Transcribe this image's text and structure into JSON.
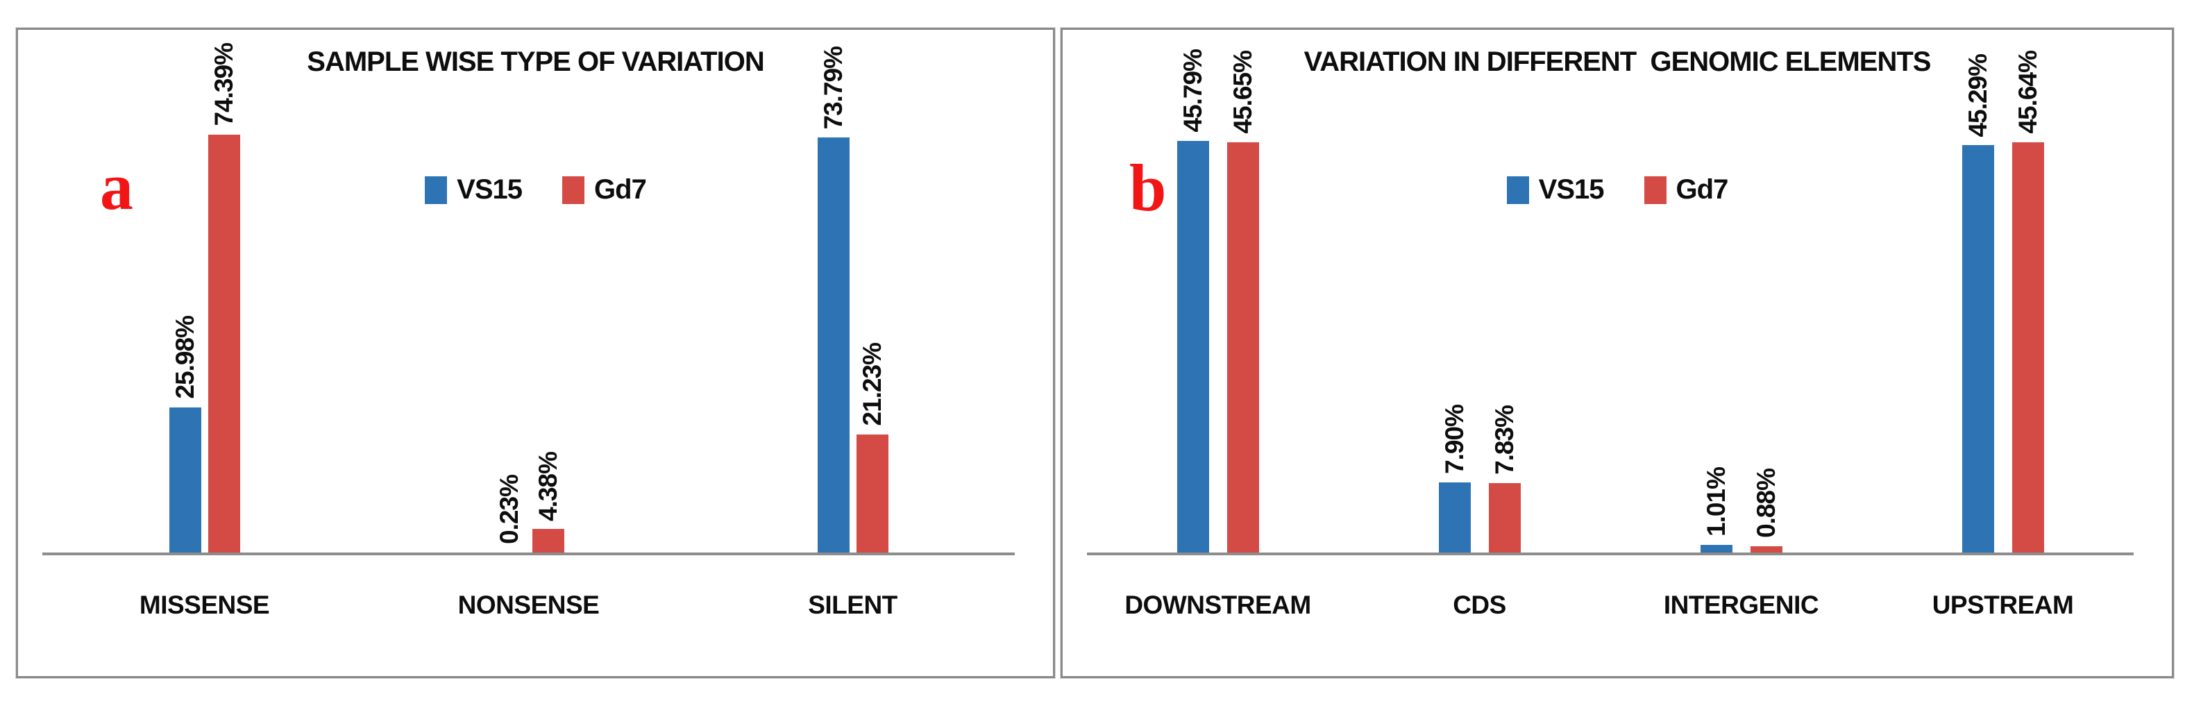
{
  "styles": {
    "bar_blue": "#2e74b5",
    "bar_red": "#d44a44",
    "panel_letter_color": "#f21515",
    "axis_line_color": "#8c8c8c",
    "panel_border_color": "#8a8a8a",
    "text_color": "#0d0d0d"
  },
  "chart_data": [
    {
      "type": "bar",
      "panel_letter": "a",
      "title": "SAMPLE WISE TYPE OF VARIATION",
      "categories": [
        "MISSENSE",
        "NONSENSE",
        "SILENT"
      ],
      "series": [
        {
          "name": "VS15",
          "color": "#2e74b5",
          "values": [
            25.98,
            0.23,
            73.79
          ],
          "value_labels": [
            "25.98%",
            "0.23%",
            "73.79%"
          ]
        },
        {
          "name": "Gd7",
          "color": "#d44a44",
          "values": [
            74.39,
            4.38,
            21.23
          ],
          "value_labels": [
            "74.39%",
            "4.38%",
            "21.23%"
          ]
        }
      ],
      "xlabel": "",
      "ylabel": "",
      "ylim": [
        0,
        80
      ],
      "grid": false,
      "y_axis_visible": false,
      "value_labels_rotated_90_deg": true,
      "legend_position": "top-center"
    },
    {
      "type": "bar",
      "panel_letter": "b",
      "title": "VARIATION IN DIFFERENT  GENOMIC ELEMENTS",
      "categories": [
        "DOWNSTREAM",
        "CDS",
        "INTERGENIC",
        "UPSTREAM"
      ],
      "series": [
        {
          "name": "VS15",
          "color": "#2e74b5",
          "values": [
            45.79,
            7.9,
            1.01,
            45.29
          ],
          "value_labels": [
            "45.79%",
            "7.90%",
            "1.01%",
            "45.29%"
          ]
        },
        {
          "name": "Gd7",
          "color": "#d44a44",
          "values": [
            45.65,
            7.83,
            0.88,
            45.64
          ],
          "value_labels": [
            "45.65%",
            "7.83%",
            "0.88%",
            "45.64%"
          ]
        }
      ],
      "xlabel": "",
      "ylabel": "",
      "ylim": [
        0,
        50
      ],
      "grid": false,
      "y_axis_visible": false,
      "value_labels_rotated_90_deg": true,
      "legend_position": "top-center"
    }
  ]
}
